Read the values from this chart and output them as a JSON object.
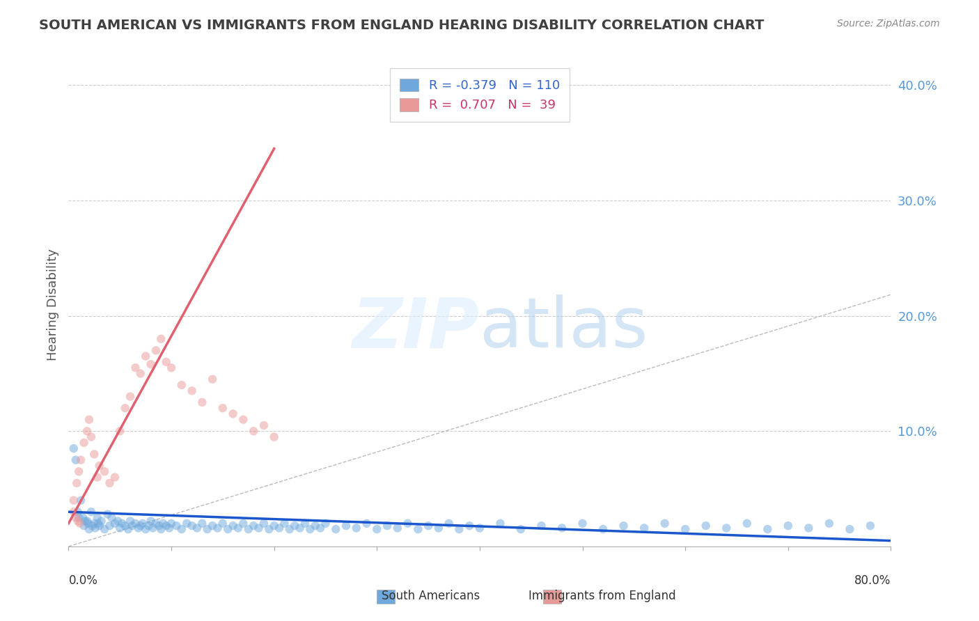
{
  "title": "SOUTH AMERICAN VS IMMIGRANTS FROM ENGLAND HEARING DISABILITY CORRELATION CHART",
  "source_text": "Source: ZipAtlas.com",
  "ylabel": "Hearing Disability",
  "xmin": 0.0,
  "xmax": 0.8,
  "ymin": 0.0,
  "ymax": 0.42,
  "blue_R": -0.379,
  "blue_N": 110,
  "pink_R": 0.707,
  "pink_N": 39,
  "blue_color": "#6fa8dc",
  "pink_color": "#ea9999",
  "blue_line_color": "#1a56cc",
  "pink_line_color": "#e06070",
  "diagonal_color": "#bbbbbb",
  "grid_color": "#cccccc",
  "title_color": "#404040",
  "axis_label_color": "#5599dd",
  "legend_R_color_blue": "#3366cc",
  "legend_R_color_pink": "#cc3366",
  "blue_scatter_x": [
    0.01,
    0.015,
    0.018,
    0.02,
    0.022,
    0.025,
    0.028,
    0.03,
    0.032,
    0.035,
    0.038,
    0.04,
    0.042,
    0.045,
    0.048,
    0.05,
    0.052,
    0.055,
    0.058,
    0.06,
    0.062,
    0.065,
    0.068,
    0.07,
    0.072,
    0.075,
    0.078,
    0.08,
    0.082,
    0.085,
    0.088,
    0.09,
    0.092,
    0.095,
    0.098,
    0.1,
    0.105,
    0.11,
    0.115,
    0.12,
    0.125,
    0.13,
    0.135,
    0.14,
    0.145,
    0.15,
    0.155,
    0.16,
    0.165,
    0.17,
    0.175,
    0.18,
    0.185,
    0.19,
    0.195,
    0.2,
    0.205,
    0.21,
    0.215,
    0.22,
    0.225,
    0.23,
    0.235,
    0.24,
    0.245,
    0.25,
    0.26,
    0.27,
    0.28,
    0.29,
    0.3,
    0.31,
    0.32,
    0.33,
    0.34,
    0.35,
    0.36,
    0.37,
    0.38,
    0.39,
    0.4,
    0.42,
    0.44,
    0.46,
    0.48,
    0.5,
    0.52,
    0.54,
    0.56,
    0.58,
    0.6,
    0.62,
    0.64,
    0.66,
    0.68,
    0.7,
    0.72,
    0.74,
    0.76,
    0.78,
    0.005,
    0.007,
    0.009,
    0.012,
    0.014,
    0.016,
    0.019,
    0.023,
    0.026,
    0.029
  ],
  "blue_scatter_y": [
    0.025,
    0.018,
    0.022,
    0.015,
    0.03,
    0.02,
    0.025,
    0.018,
    0.022,
    0.015,
    0.028,
    0.018,
    0.025,
    0.02,
    0.022,
    0.016,
    0.02,
    0.018,
    0.015,
    0.022,
    0.018,
    0.02,
    0.016,
    0.018,
    0.02,
    0.015,
    0.018,
    0.022,
    0.016,
    0.02,
    0.018,
    0.015,
    0.02,
    0.018,
    0.016,
    0.02,
    0.018,
    0.015,
    0.02,
    0.018,
    0.016,
    0.02,
    0.015,
    0.018,
    0.016,
    0.02,
    0.015,
    0.018,
    0.016,
    0.02,
    0.015,
    0.018,
    0.016,
    0.02,
    0.015,
    0.018,
    0.016,
    0.02,
    0.015,
    0.018,
    0.016,
    0.02,
    0.015,
    0.018,
    0.016,
    0.02,
    0.015,
    0.018,
    0.016,
    0.02,
    0.015,
    0.018,
    0.016,
    0.02,
    0.015,
    0.018,
    0.016,
    0.02,
    0.015,
    0.018,
    0.016,
    0.02,
    0.015,
    0.018,
    0.016,
    0.02,
    0.015,
    0.018,
    0.016,
    0.02,
    0.015,
    0.018,
    0.016,
    0.02,
    0.015,
    0.018,
    0.016,
    0.02,
    0.015,
    0.018,
    0.085,
    0.075,
    0.03,
    0.04,
    0.025,
    0.022,
    0.02,
    0.018,
    0.016,
    0.02
  ],
  "pink_scatter_x": [
    0.005,
    0.008,
    0.01,
    0.012,
    0.015,
    0.018,
    0.02,
    0.022,
    0.025,
    0.028,
    0.03,
    0.035,
    0.04,
    0.045,
    0.05,
    0.055,
    0.06,
    0.065,
    0.07,
    0.075,
    0.08,
    0.085,
    0.09,
    0.095,
    0.1,
    0.11,
    0.12,
    0.13,
    0.14,
    0.15,
    0.16,
    0.17,
    0.18,
    0.19,
    0.2,
    0.005,
    0.007,
    0.009,
    0.011
  ],
  "pink_scatter_y": [
    0.04,
    0.055,
    0.065,
    0.075,
    0.09,
    0.1,
    0.11,
    0.095,
    0.08,
    0.06,
    0.07,
    0.065,
    0.055,
    0.06,
    0.1,
    0.12,
    0.13,
    0.155,
    0.15,
    0.165,
    0.158,
    0.17,
    0.18,
    0.16,
    0.155,
    0.14,
    0.135,
    0.125,
    0.145,
    0.12,
    0.115,
    0.11,
    0.1,
    0.105,
    0.095,
    0.03,
    0.025,
    0.022,
    0.02
  ],
  "blue_trend_x": [
    0.0,
    0.8
  ],
  "blue_trend_y": [
    0.03,
    0.005
  ],
  "pink_trend_x": [
    0.0,
    0.2
  ],
  "pink_trend_y": [
    0.02,
    0.345
  ],
  "bg_color": "#ffffff",
  "scatter_alpha": 0.5,
  "scatter_size": 80
}
